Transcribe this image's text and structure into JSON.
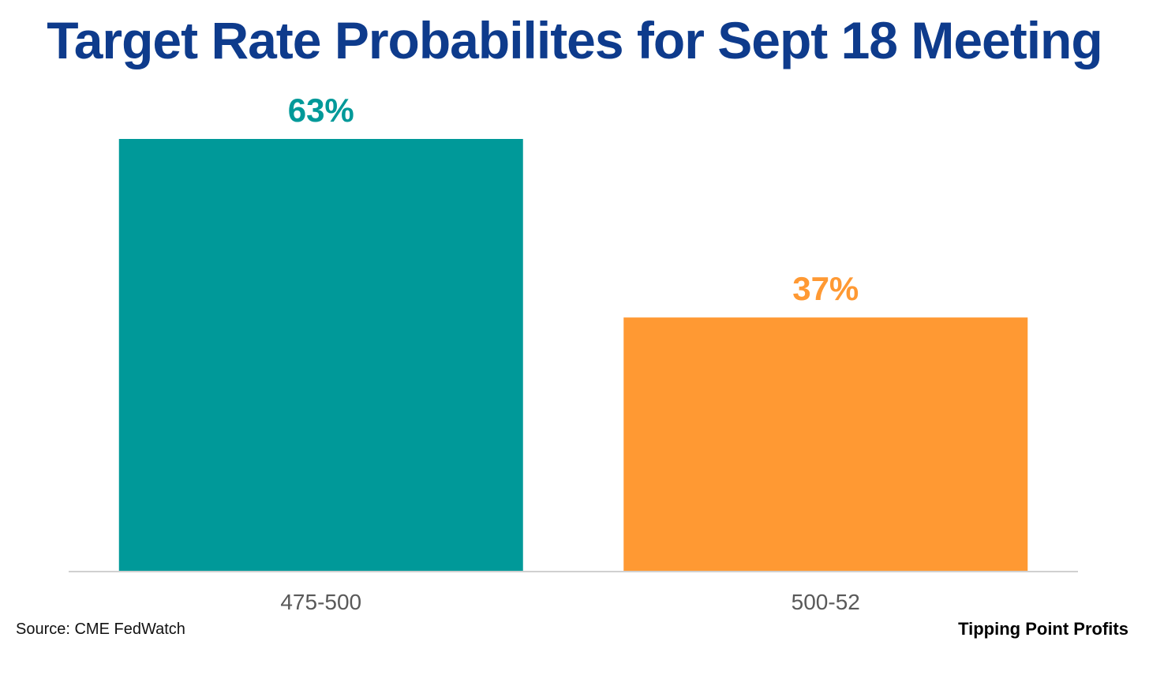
{
  "chart_data": {
    "type": "bar",
    "title": "Target Rate Probabilites for Sept 18 Meeting",
    "categories": [
      "475-500",
      "500-52"
    ],
    "values": [
      63,
      37
    ],
    "data_labels": [
      "63%",
      "37%"
    ],
    "colors": [
      "#009999",
      "#ff9933"
    ],
    "xlabel": "",
    "ylabel": "",
    "ylim": [
      0,
      63
    ],
    "grid": false,
    "legend": "none"
  },
  "colors": {
    "title": "#0e3b8c",
    "axis": "#d0d0d0"
  },
  "footer": {
    "source": "Source: CME FedWatch",
    "brand": "Tipping Point Profits"
  }
}
